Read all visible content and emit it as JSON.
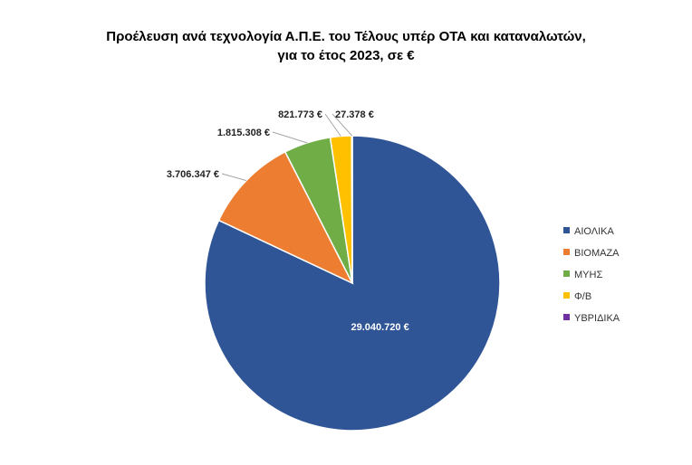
{
  "chart_data": {
    "type": "pie",
    "title": "Προέλευση ανά τεχνολογία Α.Π.Ε. του Τέλους υπέρ ΟΤΑ και καταναλωτών,",
    "subtitle": "για το έτος 2023, σε €",
    "categories": [
      "ΑΙΟΛΙΚΑ",
      "ΒΙΟΜΑΖΑ",
      "ΜΥΗΣ",
      "Φ/Β",
      "ΥΒΡΙΔΙΚΑ"
    ],
    "values": [
      29040720,
      3706347,
      1815308,
      821773,
      27378
    ],
    "data_labels": [
      "29.040.720 €",
      "3.706.347 €",
      "1.815.308 €",
      "821.773 €",
      "27.378 €"
    ],
    "colors": [
      "#2F5597",
      "#ED7D31",
      "#70AD47",
      "#FFC000",
      "#7030A0"
    ],
    "legend_position": "right"
  }
}
